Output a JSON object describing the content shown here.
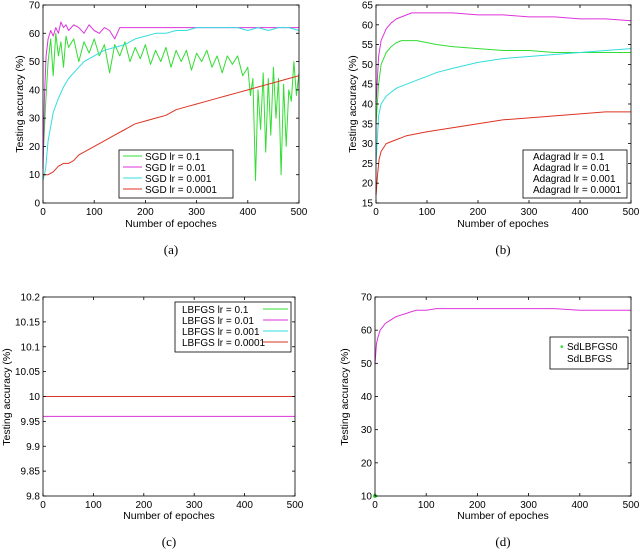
{
  "chart_data": [
    {
      "panel": "a",
      "caption": "(a)",
      "type": "line",
      "xlabel": "Number of epoches",
      "ylabel": "Testing accuracy (%)",
      "xlim": [
        0,
        500
      ],
      "ylim": [
        0,
        70
      ],
      "xticks": [
        0,
        100,
        200,
        300,
        400,
        500
      ],
      "yticks": [
        0,
        10,
        20,
        30,
        40,
        50,
        60,
        70
      ],
      "legend_position": "bottom-right",
      "series": [
        {
          "name": "SGD lr = 0.1",
          "color": "#33dd33",
          "x": [
            0,
            5,
            10,
            15,
            20,
            25,
            30,
            35,
            40,
            45,
            50,
            60,
            70,
            80,
            90,
            100,
            110,
            120,
            130,
            140,
            150,
            160,
            170,
            180,
            190,
            200,
            210,
            220,
            230,
            240,
            250,
            260,
            270,
            280,
            290,
            300,
            310,
            320,
            330,
            340,
            350,
            360,
            370,
            380,
            390,
            400,
            405,
            410,
            415,
            420,
            425,
            430,
            435,
            440,
            445,
            450,
            455,
            460,
            465,
            470,
            475,
            480,
            485,
            490,
            495,
            500
          ],
          "y": [
            15,
            35,
            50,
            58,
            45,
            60,
            52,
            57,
            48,
            59,
            55,
            58,
            50,
            57,
            53,
            58,
            52,
            56,
            46,
            56,
            52,
            57,
            50,
            55,
            51,
            56,
            49,
            54,
            50,
            55,
            48,
            54,
            50,
            54,
            47,
            53,
            50,
            54,
            48,
            52,
            46,
            52,
            49,
            52,
            45,
            48,
            38,
            44,
            8,
            40,
            26,
            46,
            18,
            44,
            24,
            48,
            30,
            44,
            10,
            42,
            20,
            40,
            36,
            50,
            38,
            46
          ]
        },
        {
          "name": "SGD lr = 0.01",
          "color": "#dd33dd",
          "x": [
            0,
            3,
            6,
            10,
            15,
            20,
            25,
            30,
            35,
            40,
            45,
            50,
            60,
            70,
            80,
            90,
            100,
            110,
            120,
            130,
            140,
            150,
            160,
            170,
            200,
            250,
            300,
            350,
            400,
            450,
            500
          ],
          "y": [
            12,
            38,
            52,
            58,
            61,
            59,
            62,
            60,
            64,
            62,
            63,
            61,
            63,
            62,
            60,
            63,
            61,
            60,
            62,
            61,
            58,
            62,
            62,
            62,
            62,
            62,
            62,
            62,
            62,
            62,
            62
          ]
        },
        {
          "name": "SGD lr = 0.001",
          "color": "#33dddd",
          "x": [
            0,
            5,
            10,
            20,
            30,
            40,
            50,
            60,
            70,
            80,
            90,
            100,
            120,
            140,
            160,
            180,
            200,
            220,
            240,
            260,
            280,
            300,
            320,
            340,
            360,
            380,
            400,
            420,
            440,
            460,
            480,
            500
          ],
          "y": [
            8,
            12,
            22,
            32,
            37,
            41,
            44,
            46,
            48,
            50,
            51,
            52,
            54,
            55,
            56,
            58,
            59,
            60,
            60,
            61,
            61,
            62,
            62,
            62,
            62,
            62,
            61,
            62,
            61,
            62,
            62,
            61
          ]
        },
        {
          "name": "SGD lr = 0.0001",
          "color": "#dd3322",
          "x": [
            0,
            5,
            10,
            20,
            30,
            40,
            50,
            60,
            70,
            80,
            90,
            100,
            120,
            140,
            160,
            180,
            200,
            220,
            240,
            260,
            280,
            300,
            320,
            340,
            360,
            380,
            400,
            420,
            440,
            460,
            480,
            500
          ],
          "y": [
            10,
            10,
            10,
            11,
            13,
            14,
            14,
            15,
            17,
            18,
            19,
            20,
            22,
            24,
            26,
            28,
            29,
            30,
            31,
            33,
            34,
            35,
            36,
            37,
            38,
            39,
            40,
            41,
            42,
            43,
            44,
            45
          ]
        }
      ]
    },
    {
      "panel": "b",
      "caption": "(b)",
      "type": "line",
      "xlabel": "Number of epoches",
      "ylabel": "Testing accuracy (%)",
      "xlim": [
        0,
        500
      ],
      "ylim": [
        15,
        65
      ],
      "xticks": [
        0,
        100,
        200,
        300,
        400,
        500
      ],
      "yticks": [
        15,
        20,
        25,
        30,
        35,
        40,
        45,
        50,
        55,
        60,
        65
      ],
      "legend_position": "bottom-right",
      "series": [
        {
          "name": "Adagrad lr = 0.1",
          "color": "#33dd33",
          "x": [
            0,
            5,
            10,
            20,
            30,
            40,
            50,
            60,
            70,
            80,
            100,
            120,
            150,
            200,
            250,
            300,
            350,
            400,
            450,
            500
          ],
          "y": [
            35,
            45,
            50,
            53,
            54.5,
            55.5,
            56,
            56,
            56,
            56,
            55.5,
            55,
            54.5,
            54,
            53.5,
            53.5,
            53,
            53,
            53,
            53
          ]
        },
        {
          "name": "Adagrad lr = 0.01",
          "color": "#dd33dd",
          "x": [
            0,
            5,
            10,
            20,
            30,
            40,
            50,
            60,
            70,
            80,
            100,
            150,
            200,
            250,
            300,
            350,
            400,
            450,
            500
          ],
          "y": [
            40,
            52,
            56,
            59,
            60.5,
            61.5,
            62,
            62.5,
            63,
            63,
            63,
            63,
            62.5,
            62.5,
            62,
            62,
            61.5,
            61.5,
            61
          ]
        },
        {
          "name": "Adagrad lr = 0.001",
          "color": "#33dddd",
          "x": [
            0,
            5,
            10,
            20,
            30,
            40,
            50,
            60,
            80,
            100,
            120,
            150,
            200,
            250,
            300,
            350,
            400,
            450,
            500
          ],
          "y": [
            25,
            37,
            40,
            42,
            43,
            44,
            44.5,
            45,
            46,
            47,
            48,
            49,
            50.5,
            51.5,
            52,
            52.5,
            53,
            53.5,
            54
          ]
        },
        {
          "name": "Adagrad lr = 0.0001",
          "color": "#dd3322",
          "x": [
            0,
            3,
            6,
            10,
            15,
            20,
            30,
            40,
            50,
            60,
            80,
            100,
            150,
            200,
            250,
            300,
            350,
            400,
            450,
            500
          ],
          "y": [
            17,
            22,
            26,
            28,
            29,
            30,
            30.5,
            31,
            31.5,
            32,
            32.5,
            33,
            34,
            35,
            36,
            36.5,
            37,
            37.5,
            38,
            38
          ]
        }
      ]
    },
    {
      "panel": "c",
      "caption": "(c)",
      "type": "line",
      "xlabel": "Number of epoches",
      "ylabel": "Testing accuracy (%)",
      "xlim": [
        0,
        500
      ],
      "ylim": [
        9.8,
        10.2
      ],
      "xticks": [
        0,
        100,
        200,
        300,
        400,
        500
      ],
      "yticks": [
        "9.8",
        "9.85",
        "9.9",
        "9.95",
        "10",
        "10.05",
        "10.1",
        "10.15",
        "10.2"
      ],
      "legend_position": "top-right",
      "series": [
        {
          "name": "LBFGS lr = 0.1",
          "color": "#33dd33",
          "x": [
            0,
            500
          ],
          "y": [
            10,
            10
          ]
        },
        {
          "name": "LBFGS lr = 0.01",
          "color": "#dd33dd",
          "x": [
            0,
            500
          ],
          "y": [
            9.96,
            9.96
          ]
        },
        {
          "name": "LBFGS lr = 0.001",
          "color": "#33dddd",
          "x": [
            0,
            500
          ],
          "y": [
            10,
            10
          ]
        },
        {
          "name": "LBFGS lr = 0.0001",
          "color": "#dd3322",
          "x": [
            0,
            500
          ],
          "y": [
            10,
            10
          ]
        }
      ]
    },
    {
      "panel": "d",
      "caption": "(d)",
      "type": "line",
      "xlabel": "Number of epoches",
      "ylabel": "Testing accuracy (%)",
      "xlim": [
        0,
        500
      ],
      "ylim": [
        10,
        70
      ],
      "xticks": [
        0,
        100,
        200,
        300,
        400,
        500
      ],
      "yticks": [
        10,
        20,
        30,
        40,
        50,
        60,
        70
      ],
      "legend_position": "top-right",
      "series": [
        {
          "name": "SdLBFGS0",
          "color": "#33dd33",
          "marker": "point",
          "x": [
            0
          ],
          "y": [
            10
          ]
        },
        {
          "name": "SdLBFGS",
          "color": "#dd33dd",
          "x": [
            0,
            3,
            6,
            10,
            15,
            20,
            30,
            40,
            50,
            60,
            70,
            80,
            100,
            120,
            150,
            200,
            250,
            300,
            350,
            400,
            450,
            500
          ],
          "y": [
            50,
            56,
            58,
            60,
            61,
            62,
            63,
            64,
            64.5,
            65,
            65.5,
            66,
            66,
            66.5,
            66.5,
            66.5,
            66.5,
            66.5,
            66.5,
            66,
            66,
            66
          ]
        }
      ]
    }
  ]
}
